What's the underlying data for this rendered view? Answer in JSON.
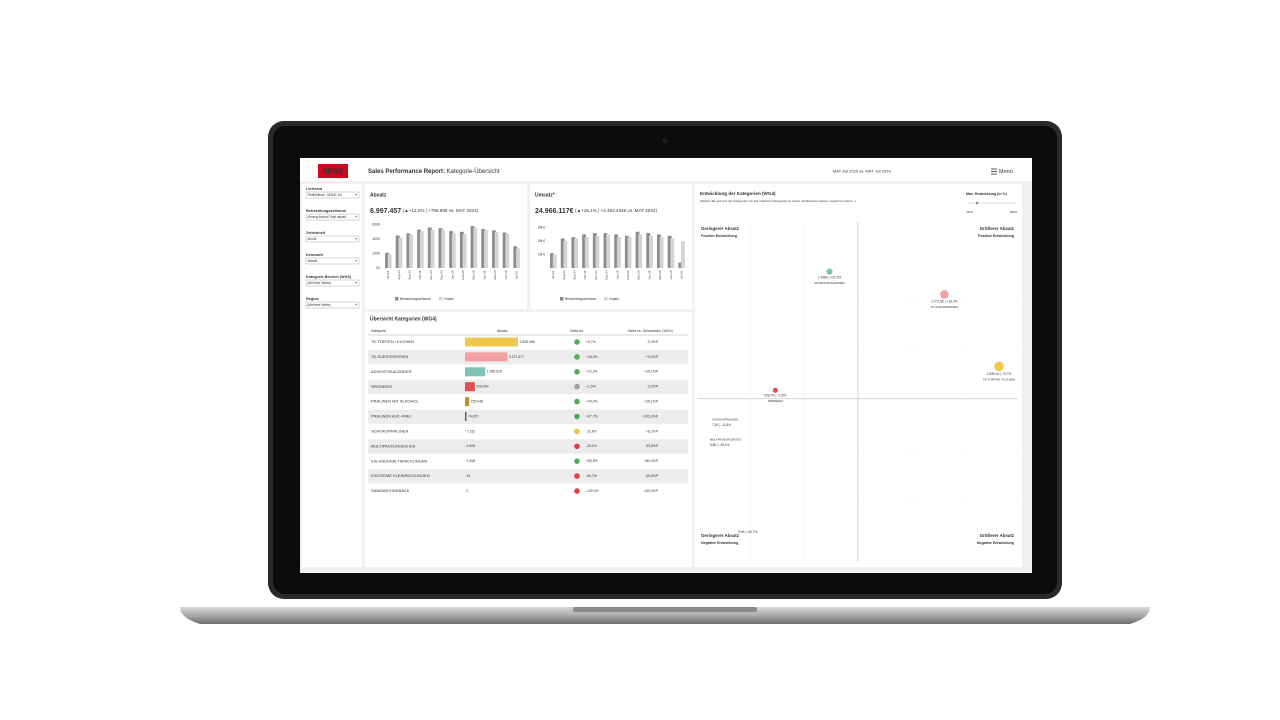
{
  "header": {
    "logo": "REWE",
    "title_bold": "Sales Performance Report:",
    "title_rest": "Kategorie-Übersicht",
    "period": "MAT Juli 2025 vs. MAT Juli 2024",
    "menu": "Menü"
  },
  "filters": [
    {
      "label": "Lieferant",
      "value": "Tiefkühlkost - NOMC Kü"
    },
    {
      "label": "Betrachtungszeitraum",
      "value": "Moving Annual Total aktuell..."
    },
    {
      "label": "Zeiteinheit",
      "value": "Monat"
    },
    {
      "label": "Kennzahl",
      "value": "Absatz"
    },
    {
      "label": "Kategorie-Bereich (WG3)",
      "value": "(Mehrere Werte)"
    },
    {
      "label": "Region",
      "value": "(Mehrere Werte)"
    }
  ],
  "absatz": {
    "title": "Absatz",
    "kpi": "6.997.457",
    "kpi_detail": "(▲+12,2% | +758.986 vs. MAT 2024)",
    "chart_data": {
      "type": "bar",
      "categories": [
        "Jul 24",
        "Aug 24",
        "Sep 24",
        "Okt 24",
        "Nov 24",
        "Dez 24",
        "Jan 25",
        "Feb 25",
        "Mrz 25",
        "Apr 25",
        "Mai 25",
        "Jun 25",
        "Jul 25"
      ],
      "series": [
        {
          "name": "Betrachtungszeitraum",
          "color": "#8c8c8c",
          "values": [
            210000,
            450000,
            480000,
            530000,
            560000,
            550000,
            510000,
            500000,
            580000,
            540000,
            520000,
            490000,
            300000
          ]
        },
        {
          "name": "Vorjahr",
          "color": "#d4d4d4",
          "values": [
            190000,
            420000,
            460000,
            510000,
            530000,
            530000,
            480000,
            470000,
            560000,
            520000,
            500000,
            470000,
            270000
          ]
        }
      ],
      "ylim": [
        0,
        650000
      ],
      "yticks": [
        {
          "value": 0,
          "label": "0K"
        },
        {
          "value": 200000,
          "label": "200K"
        },
        {
          "value": 400000,
          "label": "400K"
        },
        {
          "value": 600000,
          "label": "600K"
        }
      ]
    }
  },
  "umsatz": {
    "title": "Umsatz*",
    "kpi": "24.966.117€",
    "kpi_detail": "(▲+16,1% | +3.464.434€ vs. MAT 2024)",
    "chart_data": {
      "type": "bar",
      "categories": [
        "Jul 24",
        "Aug 24",
        "Sep 24",
        "Okt 24",
        "Nov 24",
        "Dez 24",
        "Jan 25",
        "Feb 25",
        "Mrz 25",
        "Apr 25",
        "Mai 25",
        "Jun 25",
        "Jul 25"
      ],
      "series": [
        {
          "name": "Betrachtungszeitraum",
          "color": "#8c8c8c",
          "values": [
            1100000,
            2200000,
            2300000,
            2500000,
            2600000,
            2600000,
            2500000,
            2400000,
            2700000,
            2600000,
            2500000,
            2400000,
            400000
          ]
        },
        {
          "name": "Vorjahr",
          "color": "#d4d4d4",
          "values": [
            1000000,
            2000000,
            2200000,
            2300000,
            2400000,
            2500000,
            2300000,
            2300000,
            2500000,
            2400000,
            2300000,
            2200000,
            2000000
          ]
        }
      ],
      "ylim": [
        0,
        3500000
      ],
      "yticks": [
        {
          "value": 1000000,
          "label": "1M €"
        },
        {
          "value": 2000000,
          "label": "2M €"
        },
        {
          "value": 3000000,
          "label": "3M €"
        }
      ]
    }
  },
  "table": {
    "title": "Übersicht Kategorien (WG4)",
    "columns": [
      "Kategorie",
      "Absatz",
      "Delta rel.",
      "Delta vs. Gesamtabs. (WG4)"
    ],
    "rows": [
      {
        "name": "TK-TORTEN / KUCHEN",
        "value": 2835066,
        "value_label": "2.835.066",
        "delta": "+5,7%",
        "delta_total": "-0,3%P",
        "color": "#f0c850",
        "icon_color": "#4caf50"
      },
      {
        "name": "TK-SUESSSPEISEN",
        "value": 2271477,
        "value_label": "2.271.477",
        "delta": "+18,3%",
        "delta_total": "+0,2%P",
        "color": "#f4a0a0",
        "icon_color": "#4caf50"
      },
      {
        "name": "ADVENTSKALENDER",
        "value": 1085816,
        "value_label": "1.085.816",
        "delta": "+22,3%",
        "delta_total": "+10,1%P",
        "color": "#7fc4b8",
        "icon_color": "#4caf50"
      },
      {
        "name": "SPEISEEIS",
        "value": 528654,
        "value_label": "528.654",
        "delta": "+1,5%",
        "delta_total": "-2,2%P",
        "color": "#e05050",
        "icon_color": "#9e9e9e"
      },
      {
        "name": "PRALINEN MIT ALKOHOL",
        "value": 225048,
        "value_label": "225.048",
        "delta": "+40,0%",
        "delta_total": "+26,1%P",
        "color": "#b8952a",
        "icon_color": "#4caf50"
      },
      {
        "name": "PRALINEN ALK.-FREI",
        "value": 74672,
        "value_label": "74.672",
        "delta": "+97,7%",
        "delta_total": "+102,0%P",
        "color": "#555555",
        "icon_color": "#4caf50"
      },
      {
        "name": "SCHOKOPRALINEN",
        "value": 7152,
        "value_label": "7.152",
        "delta": "-11,8%",
        "delta_total": "+6,2%P",
        "color": "#999999",
        "icon_color": "#f0c040"
      },
      {
        "name": "MULTIPACKUNGEN EIS",
        "value": 6828,
        "value_label": "6.828",
        "delta": "-28,1%",
        "delta_total": "-33,8%P",
        "color": "#999999",
        "icon_color": "#e04040"
      },
      {
        "name": "EIS HAUSHALTSPACKUNGEN",
        "value": 1508,
        "value_label": "1.508",
        "delta": "+85,5%",
        "delta_total": "+80,3%P",
        "color": "#999999",
        "icon_color": "#4caf50"
      },
      {
        "name": "EISCREME KLEINPACKUNGEN",
        "value": 24,
        "value_label": "24",
        "delta": "-66,7%",
        "delta_total": "-66,5%P",
        "color": "#999999",
        "icon_color": "#e04040"
      },
      {
        "name": "SANDWICHGEBÄCK",
        "value": 0,
        "value_label": "0",
        "delta": "-100,0%",
        "delta_total": "-100,0%P",
        "color": "#999999",
        "icon_color": "#e04040"
      }
    ]
  },
  "scatter": {
    "title": "Entwicklung der Kategorien (WG4)",
    "subtitle": "(Klicken Sie auf eine der Kategorien um ihre nächsten Kategorien zu sehen; fachlicheres weitere möglich zu sehen...)",
    "slider_label": "Max. Entwicklung (in %)",
    "slider_min": "-60%",
    "slider_max": "100%",
    "quadrants": [
      {
        "title": "Geringerer Absatz",
        "subtitle": "Positive Entwicklung",
        "color": "#4caf50"
      },
      {
        "title": "Größerer Absatz",
        "subtitle": "Positive Entwicklung",
        "color": "#4caf50"
      },
      {
        "title": "Geringerer Absatz",
        "subtitle": "Negative Entwicklung",
        "color": "#f0a020"
      },
      {
        "title": "Größerer Absatz",
        "subtitle": "Negative Entwicklung",
        "color": "#f0a020"
      }
    ],
    "chart_data": {
      "type": "scatter",
      "xlim": [
        -280,
        3030
      ],
      "ylim": [
        -28.6,
        31
      ],
      "x_divider": 1380,
      "y_divider": 0,
      "points": [
        {
          "name": "ADVENTSKALENDER",
          "x": 1086,
          "y": 22.3,
          "label": "1.086K | +22,3%",
          "color": "#7fc4b8"
        },
        {
          "name": "TK-SUESSSPEISEN",
          "x": 2271.5,
          "y": 18.3,
          "label": "2.271,5K | +18,3%",
          "color": "#f4a0a0"
        },
        {
          "name": "TK-TORTEN / KUCHEN",
          "x": 2835.1,
          "y": 5.7,
          "label": "2.835,1K | +5,7%",
          "color": "#f0c850"
        },
        {
          "name": "SPEISEEIS",
          "x": 528.7,
          "y": 1.5,
          "label": "528,7K | +1,5%",
          "color": "#e05050"
        }
      ],
      "annotations": [
        {
          "name": "SCHOKOPRALINEN",
          "label": "7,2K | -11,8%"
        },
        {
          "name": "MULTIPACKUNGEN EIS",
          "label": "6,8K | -28,1%"
        },
        {
          "name": "",
          "label": "0,0K | -66,7%"
        }
      ]
    }
  }
}
